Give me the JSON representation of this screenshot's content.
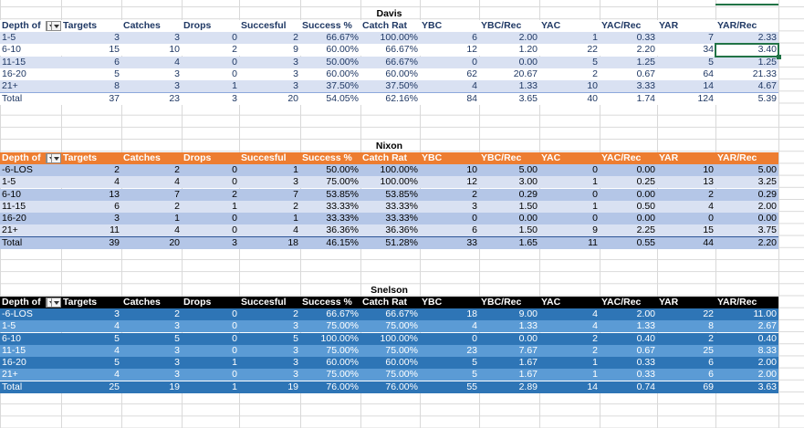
{
  "columns": [
    "Depth of",
    "Targets",
    "Catches",
    "Drops",
    "Succesful",
    "Success %",
    "Catch Rat",
    "YBC",
    "YBC/Rec",
    "YAC",
    "YAC/Rec",
    "YAR",
    "YAR/Rec"
  ],
  "tables": [
    {
      "title": "Davis",
      "rows": [
        [
          "1-5",
          "3",
          "3",
          "0",
          "2",
          "66.67%",
          "100.00%",
          "6",
          "2.00",
          "1",
          "0.33",
          "7",
          "2.33"
        ],
        [
          "6-10",
          "15",
          "10",
          "2",
          "9",
          "60.00%",
          "66.67%",
          "12",
          "1.20",
          "22",
          "2.20",
          "34",
          "3.40"
        ],
        [
          "11-15",
          "6",
          "4",
          "0",
          "3",
          "50.00%",
          "66.67%",
          "0",
          "0.00",
          "5",
          "1.25",
          "5",
          "1.25"
        ],
        [
          "16-20",
          "5",
          "3",
          "0",
          "3",
          "60.00%",
          "60.00%",
          "62",
          "20.67",
          "2",
          "0.67",
          "64",
          "21.33"
        ],
        [
          "21+",
          "8",
          "3",
          "1",
          "3",
          "37.50%",
          "37.50%",
          "4",
          "1.33",
          "10",
          "3.33",
          "14",
          "4.67"
        ]
      ],
      "total": [
        "Total",
        "37",
        "23",
        "3",
        "20",
        "54.05%",
        "62.16%",
        "84",
        "3.65",
        "40",
        "1.74",
        "124",
        "5.39"
      ]
    },
    {
      "title": "Nixon",
      "rows": [
        [
          "-6-LOS",
          "2",
          "2",
          "0",
          "1",
          "50.00%",
          "100.00%",
          "10",
          "5.00",
          "0",
          "0.00",
          "10",
          "5.00"
        ],
        [
          "1-5",
          "4",
          "4",
          "0",
          "3",
          "75.00%",
          "100.00%",
          "12",
          "3.00",
          "1",
          "0.25",
          "13",
          "3.25"
        ],
        [
          "6-10",
          "13",
          "7",
          "2",
          "7",
          "53.85%",
          "53.85%",
          "2",
          "0.29",
          "0",
          "0.00",
          "2",
          "0.29"
        ],
        [
          "11-15",
          "6",
          "2",
          "1",
          "2",
          "33.33%",
          "33.33%",
          "3",
          "1.50",
          "1",
          "0.50",
          "4",
          "2.00"
        ],
        [
          "16-20",
          "3",
          "1",
          "0",
          "1",
          "33.33%",
          "33.33%",
          "0",
          "0.00",
          "0",
          "0.00",
          "0",
          "0.00"
        ],
        [
          "21+",
          "11",
          "4",
          "0",
          "4",
          "36.36%",
          "36.36%",
          "6",
          "1.50",
          "9",
          "2.25",
          "15",
          "3.75"
        ]
      ],
      "total": [
        "Total",
        "39",
        "20",
        "3",
        "18",
        "46.15%",
        "51.28%",
        "33",
        "1.65",
        "11",
        "0.55",
        "44",
        "2.20"
      ]
    },
    {
      "title": "Snelson",
      "rows": [
        [
          "-6-LOS",
          "3",
          "2",
          "0",
          "2",
          "66.67%",
          "66.67%",
          "18",
          "9.00",
          "4",
          "2.00",
          "22",
          "11.00"
        ],
        [
          "1-5",
          "4",
          "3",
          "0",
          "3",
          "75.00%",
          "75.00%",
          "4",
          "1.33",
          "4",
          "1.33",
          "8",
          "2.67"
        ],
        [
          "6-10",
          "5",
          "5",
          "0",
          "5",
          "100.00%",
          "100.00%",
          "0",
          "0.00",
          "2",
          "0.40",
          "2",
          "0.40"
        ],
        [
          "11-15",
          "4",
          "3",
          "0",
          "3",
          "75.00%",
          "75.00%",
          "23",
          "7.67",
          "2",
          "0.67",
          "25",
          "8.33"
        ],
        [
          "16-20",
          "5",
          "3",
          "1",
          "3",
          "60.00%",
          "60.00%",
          "5",
          "1.67",
          "1",
          "0.33",
          "6",
          "2.00"
        ],
        [
          "21+",
          "4",
          "3",
          "0",
          "3",
          "75.00%",
          "75.00%",
          "5",
          "1.67",
          "1",
          "0.33",
          "6",
          "2.00"
        ]
      ],
      "total": [
        "Total",
        "25",
        "19",
        "1",
        "19",
        "76.00%",
        "76.00%",
        "55",
        "2.89",
        "14",
        "0.74",
        "69",
        "3.63"
      ]
    }
  ],
  "selected_cell": {
    "table": "Davis",
    "row": "6-10",
    "column": "YAR/Rec",
    "value": "3.40"
  }
}
